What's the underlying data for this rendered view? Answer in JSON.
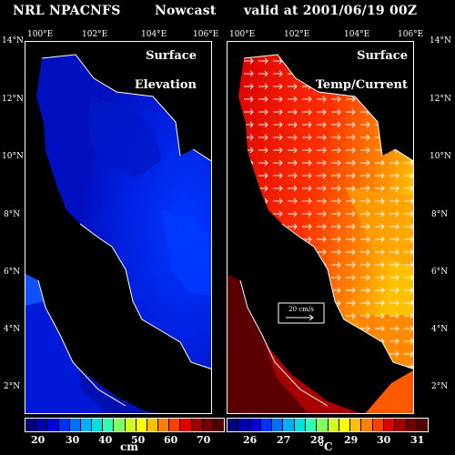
{
  "header": {
    "model": "NRL NPACNFS",
    "mode": "Nowcast",
    "valid": "valid at 2001/06/19 00Z"
  },
  "longitude_ticks": [
    "100°E",
    "102°E",
    "104°E",
    "106°E"
  ],
  "latitude_ticks": [
    "14°N",
    "12°N",
    "10°N",
    "8°N",
    "6°N",
    "4°N",
    "2°N"
  ],
  "left_panel": {
    "title_line1": "Surface",
    "title_line2": "Elevation",
    "colorbar_labels": [
      "20",
      "30",
      "40",
      "50",
      "60",
      "70"
    ],
    "unit": "cm",
    "colors": [
      "#00007a",
      "#0000a8",
      "#0000d8",
      "#0030ff",
      "#0070ff",
      "#00b0ff",
      "#00e0e0",
      "#30ffb0",
      "#80ff60",
      "#d0ff20",
      "#ffff00",
      "#ffc000",
      "#ff8000",
      "#ff4000",
      "#e00000",
      "#a00000",
      "#700000",
      "#500000"
    ]
  },
  "right_panel": {
    "title_line1": "Surface",
    "title_line2": "Temp/Current",
    "colorbar_labels": [
      "26",
      "27",
      "28",
      "29",
      "30",
      "31"
    ],
    "unit": "°C",
    "scale_label": "20 cm/s",
    "colors": [
      "#00007a",
      "#0000a8",
      "#0000d8",
      "#0030ff",
      "#0070ff",
      "#00b0ff",
      "#00e0e0",
      "#30ffb0",
      "#80ff60",
      "#d0ff20",
      "#ffff00",
      "#ffc000",
      "#ff8000",
      "#ff4000",
      "#e00000",
      "#a00000",
      "#700000",
      "#500000"
    ]
  },
  "colors": {
    "land": "#000000",
    "elevation_sea": "#0018d8",
    "elevation_high": "#0030f0",
    "elevation_low": "#0000a8",
    "temp_warm": "#ff5a00",
    "temp_hot": "#ffb000",
    "temp_mid": "#e81000",
    "temp_cool": "#a80000",
    "temp_cold": "#5a0000"
  }
}
